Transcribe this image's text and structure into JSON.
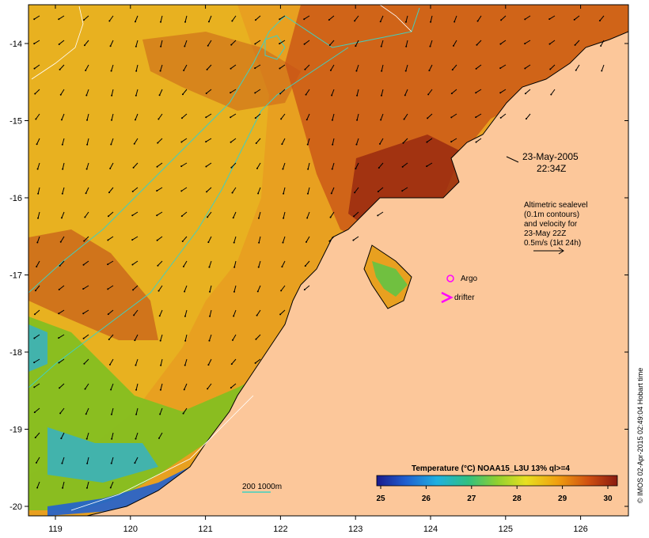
{
  "map": {
    "timestamp_date": "23-May-2005",
    "timestamp_time": "22:34Z",
    "altimetry_note": [
      "Altimetric sealevel",
      "(0.1m contours)",
      "and velocity for",
      "23-May 22Z",
      "0.5m/s (1kt 24h)"
    ],
    "legend": {
      "argo": "Argo",
      "drifter": "drifter",
      "isobath": "200  1000m"
    },
    "colorbar": {
      "title": "Temperature (°C) NOAA15_L3U 13% ql>=4",
      "ticks": [
        "25",
        "26",
        "27",
        "28",
        "29",
        "30"
      ]
    },
    "x_ticks": [
      "119",
      "120",
      "121",
      "122",
      "123",
      "124",
      "125",
      "126"
    ],
    "y_ticks": [
      "-14",
      "-15",
      "-16",
      "-17",
      "-18",
      "-19",
      "-20"
    ],
    "credit": "© IMOS 02-Apr-2015 02:49:04 Hobart time",
    "colors": {
      "land": "#fcc79a",
      "sst_cold": "#1f3fae",
      "sst_mid": "#e0d020",
      "sst_warm": "#a52a10",
      "isobath": "#40d0c0",
      "markers": "#ff00ff"
    }
  }
}
